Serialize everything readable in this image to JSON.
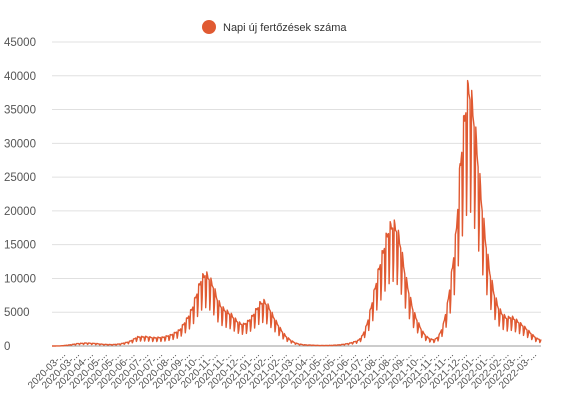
{
  "chart_data": {
    "type": "line",
    "legend_position": "top-center",
    "grid": true,
    "series": [
      {
        "name": "Napi új fertőzések száma",
        "color": "#e05a32",
        "anchors": [
          [
            0,
            0
          ],
          [
            2,
            20
          ],
          [
            4,
            150
          ],
          [
            6,
            350
          ],
          [
            8,
            430
          ],
          [
            10,
            380
          ],
          [
            12,
            250
          ],
          [
            14,
            200
          ],
          [
            16,
            300
          ],
          [
            18,
            600
          ],
          [
            19,
            900
          ],
          [
            20,
            1300
          ],
          [
            22,
            1350
          ],
          [
            24,
            1200
          ],
          [
            26,
            1250
          ],
          [
            28,
            1600
          ],
          [
            30,
            2300
          ],
          [
            31,
            3200
          ],
          [
            32,
            4200
          ],
          [
            33,
            5500
          ],
          [
            34,
            7500
          ],
          [
            35,
            9500
          ],
          [
            36,
            10400
          ],
          [
            37,
            9800
          ],
          [
            38,
            8500
          ],
          [
            39,
            6500
          ],
          [
            40,
            5500
          ],
          [
            41,
            5000
          ],
          [
            42,
            4600
          ],
          [
            43,
            3900
          ],
          [
            44,
            3300
          ],
          [
            45,
            3100
          ],
          [
            46,
            3500
          ],
          [
            47,
            4200
          ],
          [
            48,
            5200
          ],
          [
            49,
            6200
          ],
          [
            50,
            6400
          ],
          [
            51,
            5600
          ],
          [
            52,
            4300
          ],
          [
            53,
            3200
          ],
          [
            54,
            2200
          ],
          [
            55,
            1400
          ],
          [
            56,
            900
          ],
          [
            57,
            500
          ],
          [
            58,
            300
          ],
          [
            59,
            200
          ],
          [
            60,
            150
          ],
          [
            62,
            100
          ],
          [
            64,
            80
          ],
          [
            66,
            100
          ],
          [
            68,
            200
          ],
          [
            70,
            400
          ],
          [
            72,
            800
          ],
          [
            73,
            1500
          ],
          [
            74,
            3000
          ],
          [
            75,
            5500
          ],
          [
            76,
            8500
          ],
          [
            77,
            11500
          ],
          [
            78,
            14000
          ],
          [
            79,
            16500
          ],
          [
            80,
            17500
          ],
          [
            81,
            17000
          ],
          [
            82,
            14500
          ],
          [
            83,
            10500
          ],
          [
            84,
            7500
          ],
          [
            85,
            5000
          ],
          [
            86,
            3500
          ],
          [
            87,
            2200
          ],
          [
            88,
            1400
          ],
          [
            89,
            1000
          ],
          [
            90,
            900
          ],
          [
            91,
            1500
          ],
          [
            92,
            3000
          ],
          [
            93,
            6000
          ],
          [
            94,
            10500
          ],
          [
            95,
            16000
          ],
          [
            96,
            26000
          ],
          [
            97,
            33000
          ],
          [
            98,
            37500
          ],
          [
            99,
            34000
          ],
          [
            100,
            28000
          ],
          [
            101,
            21000
          ],
          [
            102,
            15000
          ],
          [
            103,
            10500
          ],
          [
            104,
            7500
          ],
          [
            105,
            5500
          ],
          [
            106,
            4500
          ],
          [
            107,
            4000
          ],
          [
            108,
            4200
          ],
          [
            109,
            3800
          ],
          [
            110,
            3300
          ],
          [
            111,
            2800
          ],
          [
            112,
            2200
          ],
          [
            113,
            1600
          ],
          [
            114,
            1100
          ],
          [
            115,
            900
          ]
        ],
        "weekly_dip": 0.45,
        "sample_points": 840
      }
    ],
    "x": {
      "range_weeks": [
        0,
        115
      ],
      "tick_labels": [
        "2020-03-...",
        "2020-03-...",
        "2020-04-...",
        "2020-05-...",
        "2020-05-...",
        "2020-06-...",
        "2020-07-...",
        "2020-07-...",
        "2020-08-...",
        "2020-09-...",
        "2020-10-...",
        "2020-11-...",
        "2020-11-...",
        "2020-12-...",
        "2021-01-...",
        "2021-02-...",
        "2021-02-...",
        "2021-03-...",
        "2021-04-...",
        "2021-05-...",
        "2021-05-...",
        "2021-06-...",
        "2021-07-...",
        "2021-08-...",
        "2021-08-...",
        "2021-09-...",
        "2021-10-...",
        "2021-11-...",
        "2021-11-...",
        "2021-12-...",
        "2022-01-...",
        "2022-01-...",
        "2022-02-...",
        "2022-03-...",
        "2022-03-..."
      ]
    },
    "y": {
      "ylim": [
        0,
        45000
      ],
      "ticks": [
        "0",
        "5000",
        "10000",
        "15000",
        "20000",
        "25000",
        "30000",
        "35000",
        "40000",
        "45000"
      ]
    }
  }
}
